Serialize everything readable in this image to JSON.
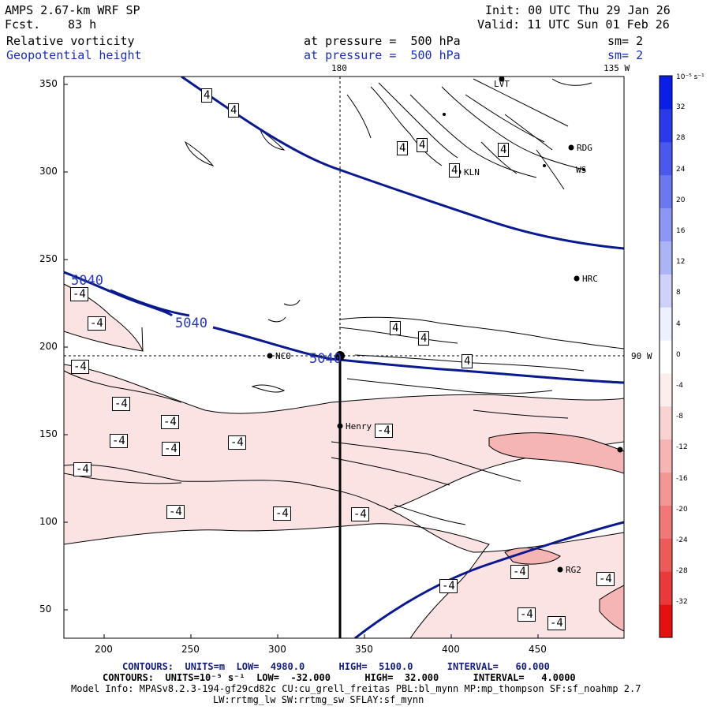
{
  "header": {
    "model": "AMPS 2.67-km WRF SP",
    "fcst_label": "Fcst.",
    "fcst_value": "83 h",
    "init": "Init: 00 UTC Thu 29 Jan 26",
    "valid": "Valid: 11 UTC Sun 01 Feb 26",
    "field1_name": "Relative vorticity",
    "field1_level": "at pressure =  500 hPa",
    "field1_sm": "sm= 2",
    "field2_name": "Geopotential height",
    "field2_level": "at pressure =  500 hPa",
    "field2_sm": "sm= 2"
  },
  "map": {
    "x_ticks": [
      "200",
      "250",
      "300",
      "350",
      "400",
      "450"
    ],
    "y_ticks": [
      "350",
      "300",
      "250",
      "200",
      "150",
      "100",
      "50"
    ],
    "lon_180": "180",
    "lon_135w": "135 W",
    "lat_90w": "90 W",
    "stations": [
      "LVT",
      "RDG",
      "KLN",
      "HRC",
      "NCO",
      "Henry",
      "RG2",
      "WS"
    ],
    "height_labels": [
      "5040",
      "5040",
      "5040"
    ],
    "vort_label_pos": "4",
    "vort_label_neg": "-4",
    "colors": {
      "height": "#0a1a8c",
      "pink_light": "#fbe3e3",
      "pink_mid": "#f5b5b5",
      "pink_dark": "#ee9090"
    }
  },
  "colorbar": {
    "unit": "10⁻⁵ s⁻¹",
    "labels": [
      "32",
      "28",
      "24",
      "20",
      "16",
      "12",
      "8",
      "4",
      "0",
      "-4",
      "-8",
      "-12",
      "-16",
      "-20",
      "-24",
      "-28",
      "-32"
    ],
    "colors": [
      "#0a1ee6",
      "#2a3ae8",
      "#4a58ec",
      "#6b78f0",
      "#8c96f3",
      "#adb4f6",
      "#ced2fa",
      "#eef0fd",
      "#ffffff",
      "#fdeeee",
      "#f9d2d2",
      "#f6b4b4",
      "#f39696",
      "#f07878",
      "#ec5a5a",
      "#e83a3a",
      "#e61010"
    ]
  },
  "footer": {
    "contours1": "CONTOURS:  UNITS=m  LOW=  4980.0      HIGH=  5100.0      INTERVAL=   60.000",
    "contours2": "CONTOURS:  UNITS=10⁻⁵ s⁻¹  LOW=  -32.000      HIGH=  32.000      INTERVAL=   4.0000",
    "model_info": "Model Info: MPASv8.2.3-194-gf29cd82c CU:cu_grell_freitas PBL:bl_mynn MP:mp_thompson SF:sf_noahmp 2.7",
    "model_info2": "LW:rrtmg_lw SW:rrtmg_sw SFLAY:sf_mynn"
  }
}
